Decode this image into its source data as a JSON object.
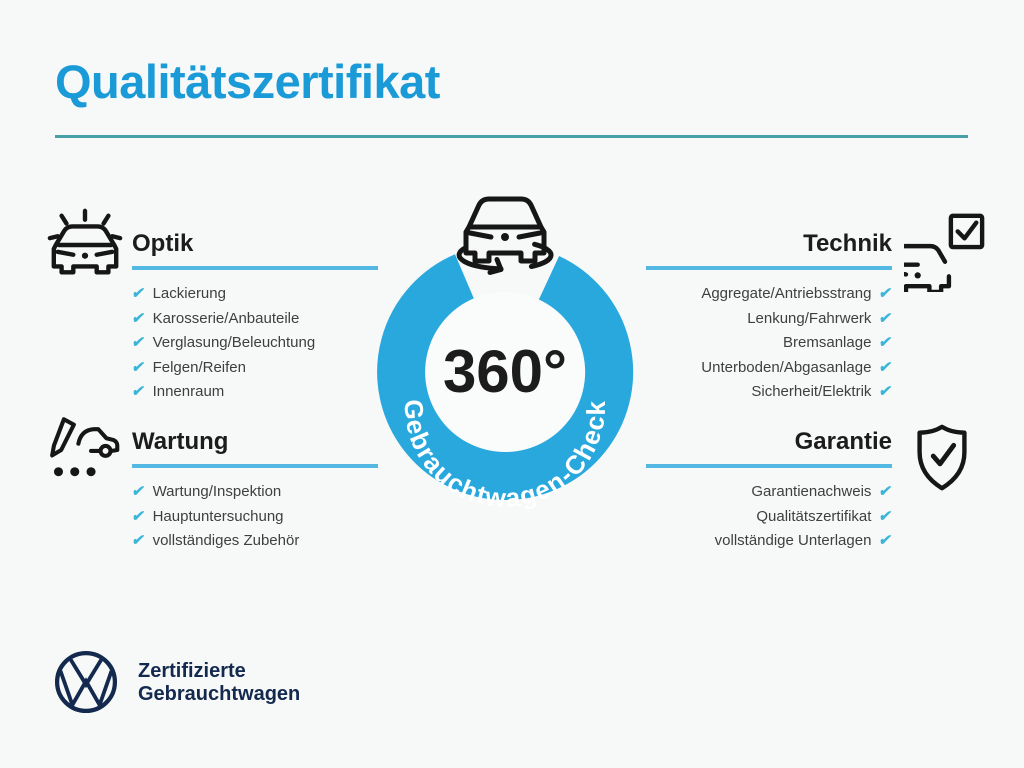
{
  "title": "Qualitätszertifikat",
  "check_glyph": "✔",
  "badge": {
    "degrees": "360°",
    "ring_label": "Gebrauchtwagen-Check",
    "icon": "rotating-car-icon"
  },
  "sections": {
    "optik": {
      "title": "Optik",
      "icon": "car-shine-icon",
      "items": [
        "Lackierung",
        "Karosserie/Anbauteile",
        "Verglasung/Beleuchtung",
        "Felgen/Reifen",
        "Innenraum"
      ]
    },
    "technik": {
      "title": "Technik",
      "icon": "car-checkbox-icon",
      "items": [
        "Aggregate/Antriebsstrang",
        "Lenkung/Fahrwerk",
        "Bremsanlage",
        "Unterboden/Abgasanlage",
        "Sicherheit/Elektrik"
      ]
    },
    "wartung": {
      "title": "Wartung",
      "icon": "pencil-car-icon",
      "items": [
        "Wartung/Inspektion",
        "Hauptuntersuchung",
        "vollständiges Zubehör"
      ]
    },
    "garantie": {
      "title": "Garantie",
      "icon": "shield-check-icon",
      "items": [
        "Garantienachweis",
        "Qualitätszertifikat",
        "vollständige Unterlagen"
      ]
    }
  },
  "footer": {
    "logo": "vw-logo",
    "line1": "Zertifizierte",
    "line2": "Gebrauchtwagen"
  },
  "colors": {
    "title_blue": "#1a9ad6",
    "rule_teal": "#4aa0a8",
    "section_underline_blue": "#54b9e2",
    "check_cyan": "#3bb6d6",
    "ring_blue": "#29a8de",
    "navy": "#13294e",
    "item_text": "#3f3f3f"
  }
}
